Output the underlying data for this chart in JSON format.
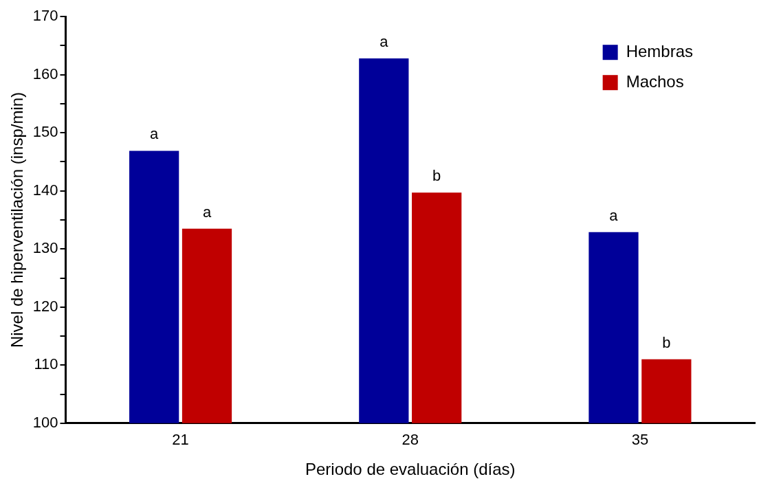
{
  "chart_data": {
    "type": "bar",
    "xlabel": "Periodo de evaluación (días)",
    "ylabel": "Nivel de hiperventilación (insp/min)",
    "categories": [
      "21",
      "28",
      "35"
    ],
    "series": [
      {
        "name": "Hembras",
        "color": "#000099",
        "values": [
          146.9,
          162.8,
          132.9
        ]
      },
      {
        "name": "Machos",
        "color": "#c00000",
        "values": [
          133.5,
          139.7,
          111
        ]
      }
    ],
    "ylim": [
      100,
      170
    ],
    "yticks": [
      100,
      {
        "value": 105,
        "label": null
      },
      110,
      {
        "value": 115,
        "label": null
      },
      120,
      {
        "value": 125,
        "label": null
      },
      130,
      {
        "value": 135,
        "label": null
      },
      140,
      {
        "value": 145,
        "label": null
      },
      150,
      {
        "value": 155,
        "label": null
      },
      160,
      {
        "value": 165,
        "label": null
      },
      170
    ],
    "annotations": [
      {
        "text": "a",
        "x": "21",
        "y": 146.9
      },
      {
        "text": "a",
        "x": "21",
        "y": 133.5
      },
      {
        "text": "a",
        "x": "28",
        "y": 162.8
      },
      {
        "text": "b",
        "x": "28",
        "y": 139.7
      },
      {
        "text": "a",
        "x": "35",
        "y": 132.9
      },
      {
        "text": "b",
        "x": "35",
        "y": 111
      }
    ],
    "legend": "top right",
    "grid": false
  }
}
